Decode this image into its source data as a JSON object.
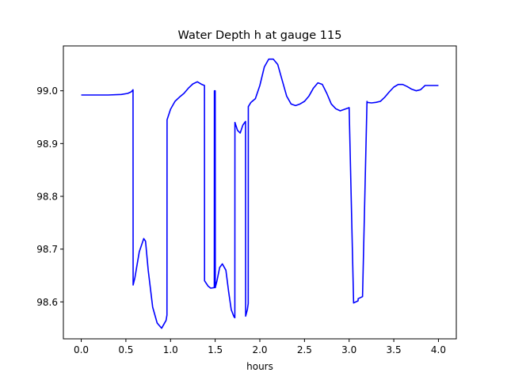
{
  "chart_data": {
    "type": "line",
    "title": "Water Depth h at gauge 115",
    "xlabel": "hours",
    "ylabel": "",
    "xlim": [
      -0.2,
      4.2
    ],
    "ylim": [
      98.53,
      99.085
    ],
    "xticks": [
      0.0,
      0.5,
      1.0,
      1.5,
      2.0,
      2.5,
      3.0,
      3.5,
      4.0
    ],
    "xtick_labels": [
      "0.0",
      "0.5",
      "1.0",
      "1.5",
      "2.0",
      "2.5",
      "3.0",
      "3.5",
      "4.0"
    ],
    "yticks": [
      98.6,
      98.7,
      98.8,
      98.9,
      99.0
    ],
    "ytick_labels": [
      "98.6",
      "98.7",
      "98.8",
      "98.9",
      "99.0"
    ],
    "grid": false,
    "legend": "none",
    "series": [
      {
        "color": "#0000ff",
        "x": [
          0.0,
          0.3,
          0.45,
          0.52,
          0.56,
          0.58,
          0.581,
          0.6,
          0.65,
          0.7,
          0.72,
          0.75,
          0.8,
          0.85,
          0.9,
          0.95,
          0.96,
          0.961,
          1.0,
          1.05,
          1.1,
          1.15,
          1.2,
          1.25,
          1.3,
          1.35,
          1.38,
          1.381,
          1.42,
          1.45,
          1.49,
          1.491,
          1.5,
          1.501,
          1.52,
          1.55,
          1.58,
          1.62,
          1.65,
          1.68,
          1.71,
          1.72,
          1.721,
          1.75,
          1.78,
          1.81,
          1.84,
          1.841,
          1.86,
          1.87,
          1.871,
          1.9,
          1.95,
          2.0,
          2.05,
          2.1,
          2.15,
          2.2,
          2.25,
          2.3,
          2.35,
          2.4,
          2.45,
          2.5,
          2.55,
          2.6,
          2.65,
          2.7,
          2.75,
          2.8,
          2.85,
          2.9,
          2.95,
          3.0,
          3.05,
          3.1,
          3.101,
          3.15,
          3.2,
          3.201,
          3.25,
          3.3,
          3.35,
          3.4,
          3.45,
          3.5,
          3.55,
          3.6,
          3.65,
          3.7,
          3.75,
          3.8,
          3.85,
          3.9,
          3.95,
          4.0
        ],
        "y": [
          98.992,
          98.992,
          98.993,
          98.995,
          98.998,
          99.002,
          98.632,
          98.645,
          98.695,
          98.72,
          98.715,
          98.66,
          98.59,
          98.56,
          98.55,
          98.565,
          98.575,
          98.945,
          98.965,
          98.98,
          98.988,
          98.995,
          99.005,
          99.013,
          99.017,
          99.012,
          99.01,
          98.64,
          98.63,
          98.626,
          98.627,
          99.0,
          99.0,
          98.627,
          98.64,
          98.665,
          98.672,
          98.66,
          98.62,
          98.585,
          98.572,
          98.57,
          98.94,
          98.925,
          98.92,
          98.935,
          98.942,
          98.573,
          98.585,
          98.597,
          98.97,
          98.978,
          98.985,
          99.01,
          99.045,
          99.06,
          99.06,
          99.05,
          99.02,
          98.99,
          98.975,
          98.972,
          98.975,
          98.98,
          98.99,
          99.005,
          99.015,
          99.012,
          98.995,
          98.975,
          98.966,
          98.962,
          98.965,
          98.968,
          98.598,
          98.602,
          98.606,
          98.61,
          98.98,
          98.978,
          98.977,
          98.978,
          98.98,
          98.988,
          98.998,
          99.007,
          99.012,
          99.012,
          99.008,
          99.003,
          99.0,
          99.002,
          99.01,
          99.01,
          99.01,
          99.01
        ]
      }
    ]
  }
}
